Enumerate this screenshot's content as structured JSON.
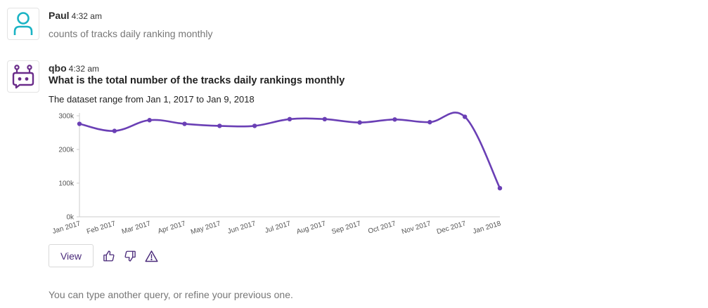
{
  "user_message": {
    "name": "Paul",
    "time": "4:32 am",
    "text": "counts of tracks daily ranking monthly",
    "avatar_icon": "user-icon",
    "avatar_color": "#1ab3c4"
  },
  "bot_message": {
    "name": "qbo",
    "time": "4:32 am",
    "question": "What is the total number of the tracks daily rankings monthly",
    "range_text": "The dataset range from Jan 1, 2017 to Jan 9, 2018",
    "avatar_icon": "robot-icon",
    "avatar_color": "#6a2c8a"
  },
  "chart_data": {
    "type": "line",
    "categories": [
      "Jan 2017",
      "Feb 2017",
      "Mar 2017",
      "Apr 2017",
      "May 2017",
      "Jun 2017",
      "Jul 2017",
      "Aug 2017",
      "Sep 2017",
      "Oct 2017",
      "Nov 2017",
      "Dec 2017",
      "Jan 2018"
    ],
    "values": [
      276000,
      255000,
      287000,
      276000,
      270000,
      270000,
      290000,
      290000,
      280000,
      289000,
      281000,
      297000,
      85000
    ],
    "ylim": [
      0,
      300000
    ],
    "yticks": [
      0,
      100000,
      200000,
      300000
    ],
    "ytick_labels": [
      "0k",
      "100k",
      "200k",
      "300k"
    ],
    "line_color": "#6a3fb5",
    "grid": false
  },
  "actions": {
    "view_label": "View",
    "thumbs_up_icon": "thumbs-up-icon",
    "thumbs_down_icon": "thumbs-down-icon",
    "warning_icon": "warning-icon"
  },
  "footer": {
    "text": "You can type another query, or refine your previous one."
  }
}
